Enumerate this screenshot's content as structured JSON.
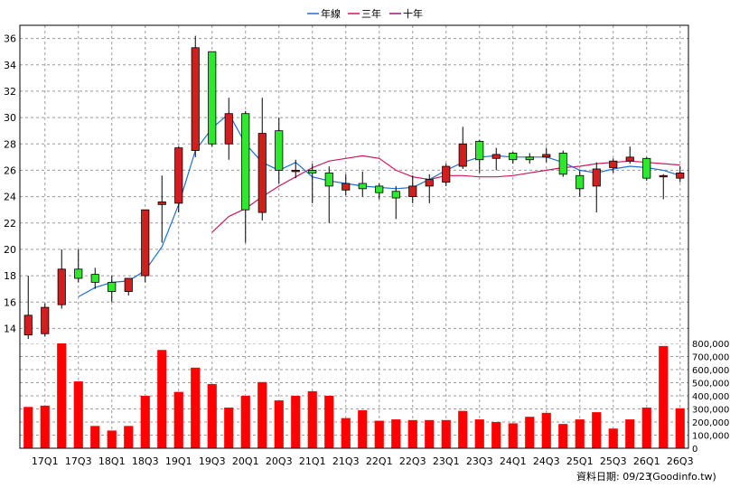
{
  "chart_data": {
    "type": "candlestick-with-volume",
    "legend": [
      {
        "name": "年線",
        "color": "#1f6fd6"
      },
      {
        "name": "三年",
        "color": "#d0175c"
      },
      {
        "name": "十年",
        "color": "#a0147a"
      }
    ],
    "footer": "資料日期: 09/23",
    "source": "(Goodinfo.tw)",
    "price_axis": {
      "min": 13,
      "max": 37,
      "ticks": [
        14,
        16,
        18,
        20,
        22,
        24,
        26,
        28,
        30,
        32,
        34,
        36
      ]
    },
    "volume_axis": {
      "min": 0,
      "max": 800000,
      "ticks": [
        "0",
        "100,000",
        "200,000",
        "300,000",
        "400,000",
        "500,000",
        "600,000",
        "700,000",
        "800,000"
      ],
      "tick_values": [
        0,
        100000,
        200000,
        300000,
        400000,
        500000,
        600000,
        700000,
        800000
      ]
    },
    "x_tick_labels": [
      "17Q1",
      "17Q3",
      "18Q1",
      "18Q3",
      "19Q1",
      "19Q3",
      "20Q1",
      "20Q3",
      "21Q1",
      "21Q3",
      "22Q1",
      "22Q3",
      "23Q1",
      "23Q3",
      "24Q1",
      "24Q3",
      "25Q1",
      "25Q3",
      "26Q1",
      "26Q3"
    ],
    "candles": [
      {
        "o": 13.5,
        "h": 18.0,
        "l": 13.2,
        "c": 15.0
      },
      {
        "o": 13.6,
        "h": 15.9,
        "l": 13.4,
        "c": 15.6
      },
      {
        "o": 15.8,
        "h": 20.0,
        "l": 15.5,
        "c": 18.5
      },
      {
        "o": 18.5,
        "h": 20.0,
        "l": 17.5,
        "c": 17.8
      },
      {
        "o": 18.1,
        "h": 18.6,
        "l": 17.0,
        "c": 17.5
      },
      {
        "o": 17.5,
        "h": 18.0,
        "l": 16.0,
        "c": 16.8
      },
      {
        "o": 16.8,
        "h": 17.8,
        "l": 16.5,
        "c": 17.8
      },
      {
        "o": 18.0,
        "h": 23.0,
        "l": 17.5,
        "c": 23.0
      },
      {
        "o": 23.4,
        "h": 25.6,
        "l": 20.5,
        "c": 23.6
      },
      {
        "o": 23.5,
        "h": 27.8,
        "l": 22.8,
        "c": 27.7
      },
      {
        "o": 27.5,
        "h": 36.2,
        "l": 27.0,
        "c": 35.3
      },
      {
        "o": 35.0,
        "h": 35.0,
        "l": 27.8,
        "c": 28.0
      },
      {
        "o": 28.0,
        "h": 31.5,
        "l": 26.8,
        "c": 30.3
      },
      {
        "o": 30.3,
        "h": 30.5,
        "l": 20.5,
        "c": 23.0
      },
      {
        "o": 22.8,
        "h": 31.5,
        "l": 22.2,
        "c": 28.8
      },
      {
        "o": 29.0,
        "h": 30.0,
        "l": 25.0,
        "c": 26.0
      },
      {
        "o": 26.0,
        "h": 26.8,
        "l": 25.4,
        "c": 26.0
      },
      {
        "o": 26.0,
        "h": 26.5,
        "l": 23.5,
        "c": 25.8
      },
      {
        "o": 25.8,
        "h": 26.3,
        "l": 22.0,
        "c": 24.8
      },
      {
        "o": 24.5,
        "h": 25.7,
        "l": 24.1,
        "c": 25.0
      },
      {
        "o": 25.0,
        "h": 25.9,
        "l": 24.0,
        "c": 24.6
      },
      {
        "o": 24.8,
        "h": 25.0,
        "l": 23.8,
        "c": 24.3
      },
      {
        "o": 24.4,
        "h": 24.8,
        "l": 22.3,
        "c": 23.9
      },
      {
        "o": 24.0,
        "h": 25.6,
        "l": 23.5,
        "c": 24.8
      },
      {
        "o": 24.8,
        "h": 25.7,
        "l": 23.5,
        "c": 25.3
      },
      {
        "o": 25.1,
        "h": 26.5,
        "l": 24.8,
        "c": 26.3
      },
      {
        "o": 26.3,
        "h": 29.3,
        "l": 26.1,
        "c": 28.0
      },
      {
        "o": 28.2,
        "h": 28.3,
        "l": 25.8,
        "c": 26.8
      },
      {
        "o": 26.9,
        "h": 27.7,
        "l": 26.0,
        "c": 27.2
      },
      {
        "o": 27.3,
        "h": 27.4,
        "l": 26.5,
        "c": 26.8
      },
      {
        "o": 27.0,
        "h": 27.3,
        "l": 26.5,
        "c": 26.8
      },
      {
        "o": 27.0,
        "h": 27.7,
        "l": 26.6,
        "c": 27.2
      },
      {
        "o": 27.3,
        "h": 27.5,
        "l": 25.5,
        "c": 25.7
      },
      {
        "o": 25.6,
        "h": 26.0,
        "l": 24.0,
        "c": 24.6
      },
      {
        "o": 24.8,
        "h": 26.6,
        "l": 22.8,
        "c": 26.1
      },
      {
        "o": 26.2,
        "h": 26.9,
        "l": 25.8,
        "c": 26.7
      },
      {
        "o": 26.7,
        "h": 27.8,
        "l": 26.5,
        "c": 27.0
      },
      {
        "o": 26.9,
        "h": 27.0,
        "l": 25.2,
        "c": 25.4
      },
      {
        "o": 25.5,
        "h": 25.7,
        "l": 23.8,
        "c": 25.6
      },
      {
        "o": 25.4,
        "h": 26.3,
        "l": 25.1,
        "c": 25.8
      }
    ],
    "volumes": [
      315000,
      325000,
      800000,
      510000,
      170000,
      135000,
      170000,
      400000,
      750000,
      430000,
      615000,
      490000,
      310000,
      400000,
      505000,
      365000,
      400000,
      435000,
      400000,
      230000,
      290000,
      210000,
      220000,
      215000,
      215000,
      215000,
      285000,
      220000,
      200000,
      190000,
      240000,
      270000,
      185000,
      220000,
      275000,
      150000,
      220000,
      310000,
      780000,
      305000
    ],
    "year_line": [
      null,
      null,
      null,
      16.4,
      17.1,
      17.5,
      17.6,
      18.4,
      20.2,
      23.4,
      27.5,
      29.2,
      30.3,
      28.0,
      26.6,
      26.0,
      26.6,
      25.5,
      25.2,
      25.0,
      24.8,
      24.7,
      24.6,
      24.7,
      25.3,
      26.0,
      26.6,
      27.0,
      27.1,
      27.0,
      27.0,
      27.0,
      26.6,
      26.0,
      25.8,
      26.1,
      26.3,
      26.2,
      26.0,
      25.6
    ],
    "three_year_line": [
      null,
      null,
      null,
      null,
      null,
      null,
      null,
      null,
      null,
      null,
      null,
      21.3,
      22.5,
      23.1,
      24.0,
      24.8,
      25.5,
      26.2,
      26.7,
      26.9,
      27.1,
      26.9,
      26.0,
      25.5,
      25.3,
      25.6,
      25.6,
      25.5,
      25.5,
      25.6,
      25.8,
      26.0,
      26.2,
      26.3,
      26.5,
      26.6,
      26.7,
      26.6,
      26.5,
      26.4
    ],
    "ten_year_line": [
      null,
      null,
      null,
      null,
      null,
      null,
      null,
      null,
      null,
      null,
      null,
      null,
      null,
      null,
      null,
      null,
      null,
      null,
      null,
      null,
      null,
      null,
      null,
      null,
      null,
      null,
      null,
      null,
      null,
      null,
      null,
      null,
      null,
      null,
      null,
      null,
      null,
      null,
      null,
      null
    ]
  }
}
